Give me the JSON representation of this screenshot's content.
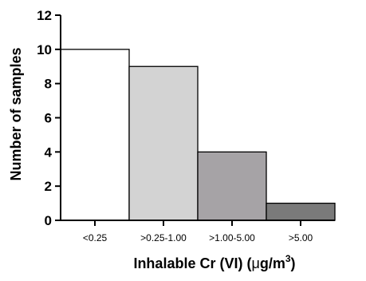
{
  "chart_data": {
    "type": "bar",
    "categories": [
      "<0.25",
      ">0.25-1.00",
      ">1.00-5.00",
      ">5.00"
    ],
    "values": [
      10,
      9,
      4,
      1
    ],
    "bar_colors": [
      "#ffffff",
      "#d3d3d3",
      "#a6a3a6",
      "#7a7a7a"
    ],
    "xlabel": {
      "prefix": "Inhalable Cr (VI) (",
      "mu": "μ",
      "unit": "g/m",
      "sup": "3",
      "suffix": ")"
    },
    "ylabel": "Number of samples",
    "ylim": [
      0,
      12
    ],
    "yticks": [
      0,
      2,
      4,
      6,
      8,
      10,
      12
    ],
    "grid": false,
    "legend": "none"
  }
}
